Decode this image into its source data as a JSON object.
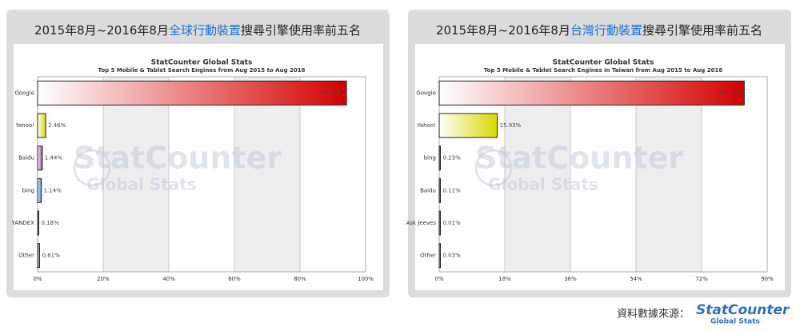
{
  "chart_data": [
    {
      "type": "bar",
      "orientation": "horizontal",
      "heading": [
        "2015年8月~2016年8月",
        "全球行動裝置",
        "搜尋引擎使用率前五名"
      ],
      "title": "StatCounter Global Stats",
      "subtitle": "Top 5 Mobile & Tablet Search Engines from Aug 2015 to Aug 2016",
      "categories": [
        "Google",
        "Yahoo!",
        "Baidu",
        "bing",
        "YANDEX",
        "Other"
      ],
      "values": [
        94.17,
        2.46,
        1.44,
        1.14,
        0.18,
        0.61
      ],
      "value_labels": [
        "94.17%",
        "2.46%",
        "1.44%",
        "1.14%",
        "0.18%",
        "0.61%"
      ],
      "colors": [
        "#d40000",
        "#d8d800",
        "#a040a0",
        "#3a7fd0",
        "#202020",
        "#606060"
      ],
      "xlim": [
        0,
        100
      ],
      "xticks": [
        {
          "value": 0,
          "label": "0%"
        },
        {
          "value": 20,
          "label": "20%"
        },
        {
          "value": 40,
          "label": "40%"
        },
        {
          "value": 60,
          "label": "60%"
        },
        {
          "value": 80,
          "label": "80%"
        },
        {
          "value": 100,
          "label": "100%"
        }
      ],
      "grid": true
    },
    {
      "type": "bar",
      "orientation": "horizontal",
      "heading": [
        "2015年8月~2016年8月",
        "台灣行動裝置",
        "搜尋引擎使用率前五名"
      ],
      "title": "StatCounter Global Stats",
      "subtitle": "Top 5 Mobile & Tablet Search Engines in Taiwan from Aug 2015 to Aug 2016",
      "categories": [
        "Google",
        "Yahoo!",
        "bing",
        "Baidu",
        "Ask Jeeves",
        "Other"
      ],
      "values": [
        83.71,
        15.93,
        0.23,
        0.11,
        0.01,
        0.03
      ],
      "value_labels": [
        "83.71%",
        "15.93%",
        "0.23%",
        "0.11%",
        "0.01%",
        "0.03%"
      ],
      "colors": [
        "#d40000",
        "#d8d800",
        "#202020",
        "#202020",
        "#202020",
        "#606060"
      ],
      "xlim": [
        0,
        90
      ],
      "xticks": [
        {
          "value": 0,
          "label": "0%"
        },
        {
          "value": 18,
          "label": "18%"
        },
        {
          "value": 36,
          "label": "36%"
        },
        {
          "value": 54,
          "label": "54%"
        },
        {
          "value": 72,
          "label": "72%"
        },
        {
          "value": 90,
          "label": "90%"
        }
      ],
      "grid": true
    }
  ],
  "source": "資料數據來源：",
  "source_logo": [
    "StatCounter",
    "Global Stats"
  ]
}
